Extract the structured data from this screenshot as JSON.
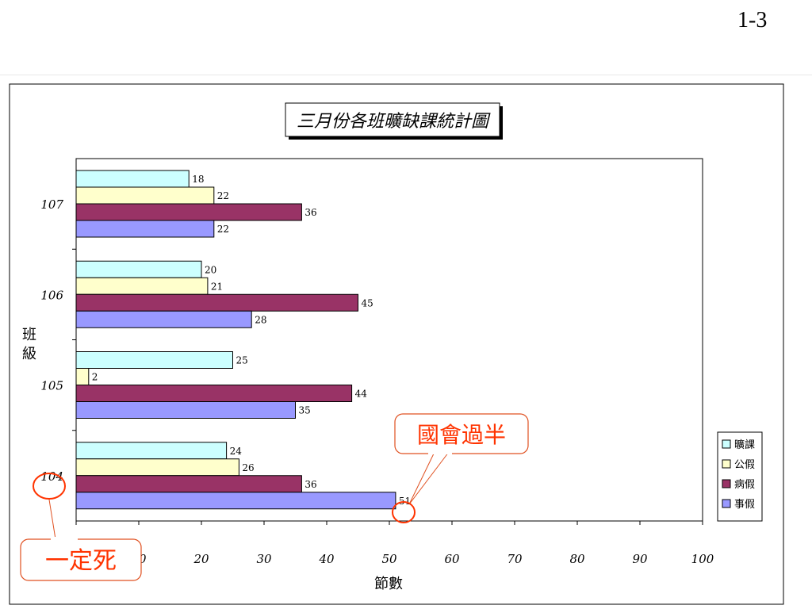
{
  "page_number": "1-3",
  "chart_data": {
    "type": "bar",
    "orientation": "horizontal",
    "title": "三月份各班曠缺課統計圖",
    "xlabel": "節數",
    "ylabel": "班級",
    "xlim": [
      0,
      100
    ],
    "x_ticks": [
      "0",
      "10",
      "20",
      "30",
      "40",
      "50",
      "60",
      "70",
      "80",
      "90",
      "100"
    ],
    "grid": false,
    "legend_position": "right",
    "categories": [
      "107",
      "106",
      "105",
      "104"
    ],
    "series": [
      {
        "name": "曠課",
        "color": "#ccffff",
        "values": [
          18,
          20,
          25,
          24
        ]
      },
      {
        "name": "公假",
        "color": "#ffffcc",
        "values": [
          22,
          21,
          2,
          26
        ]
      },
      {
        "name": "病假",
        "color": "#993366",
        "values": [
          36,
          45,
          44,
          36
        ]
      },
      {
        "name": "事假",
        "color": "#9999ff",
        "values": [
          22,
          28,
          35,
          51
        ]
      }
    ],
    "annotations": [
      {
        "text": "國會過半",
        "color": "#ff3300",
        "target": "104 事假 51"
      },
      {
        "text": "一定死",
        "color": "#ff3300",
        "target": "104"
      }
    ]
  }
}
